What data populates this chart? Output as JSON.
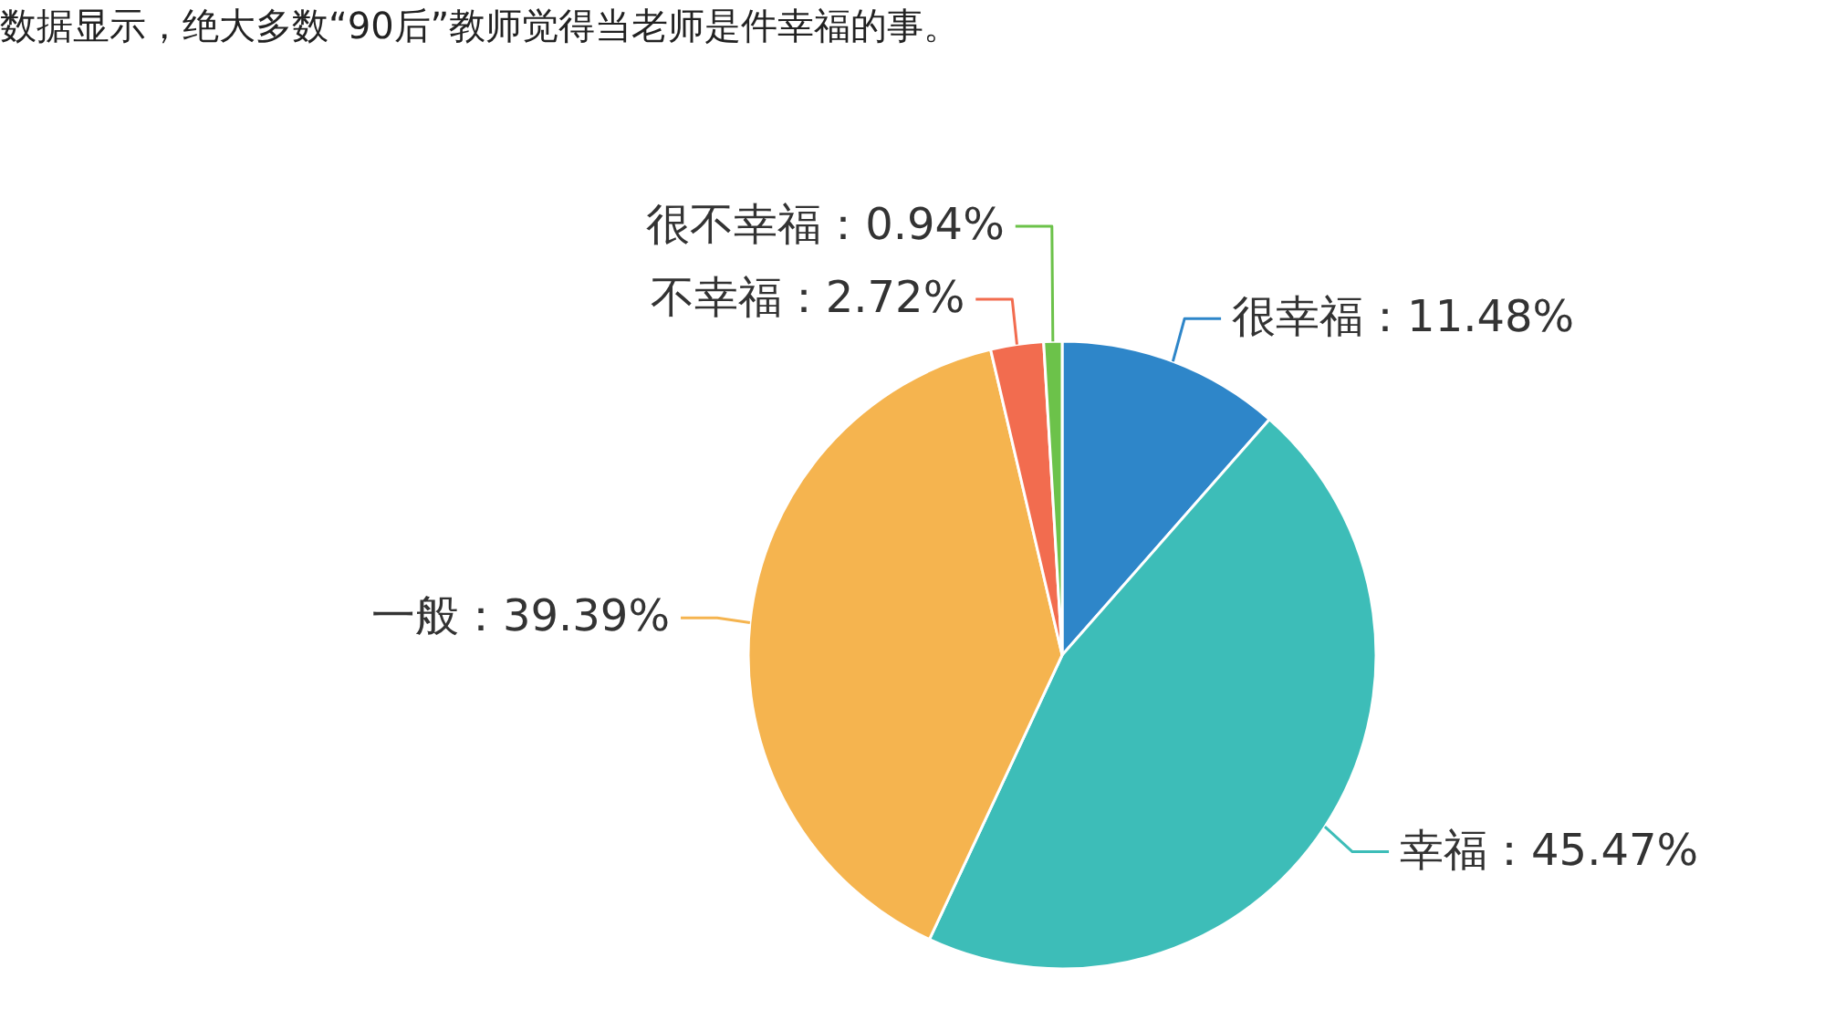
{
  "chart_data": {
    "type": "pie",
    "title": "数据显示，绝大多数“90后”教师觉得当老师是件幸福的事。",
    "categories": [
      "很幸福",
      "幸福",
      "一般",
      "不幸福",
      "很不幸福"
    ],
    "values": [
      11.48,
      45.47,
      39.39,
      2.72,
      0.94
    ],
    "colors": [
      "#2e86c9",
      "#3dbdb8",
      "#f5b44f",
      "#f26c4f",
      "#6cc24a"
    ],
    "value_labels": [
      "11.48%",
      "45.47%",
      "39.39%",
      "2.72%",
      "0.94%"
    ],
    "legend": false
  }
}
